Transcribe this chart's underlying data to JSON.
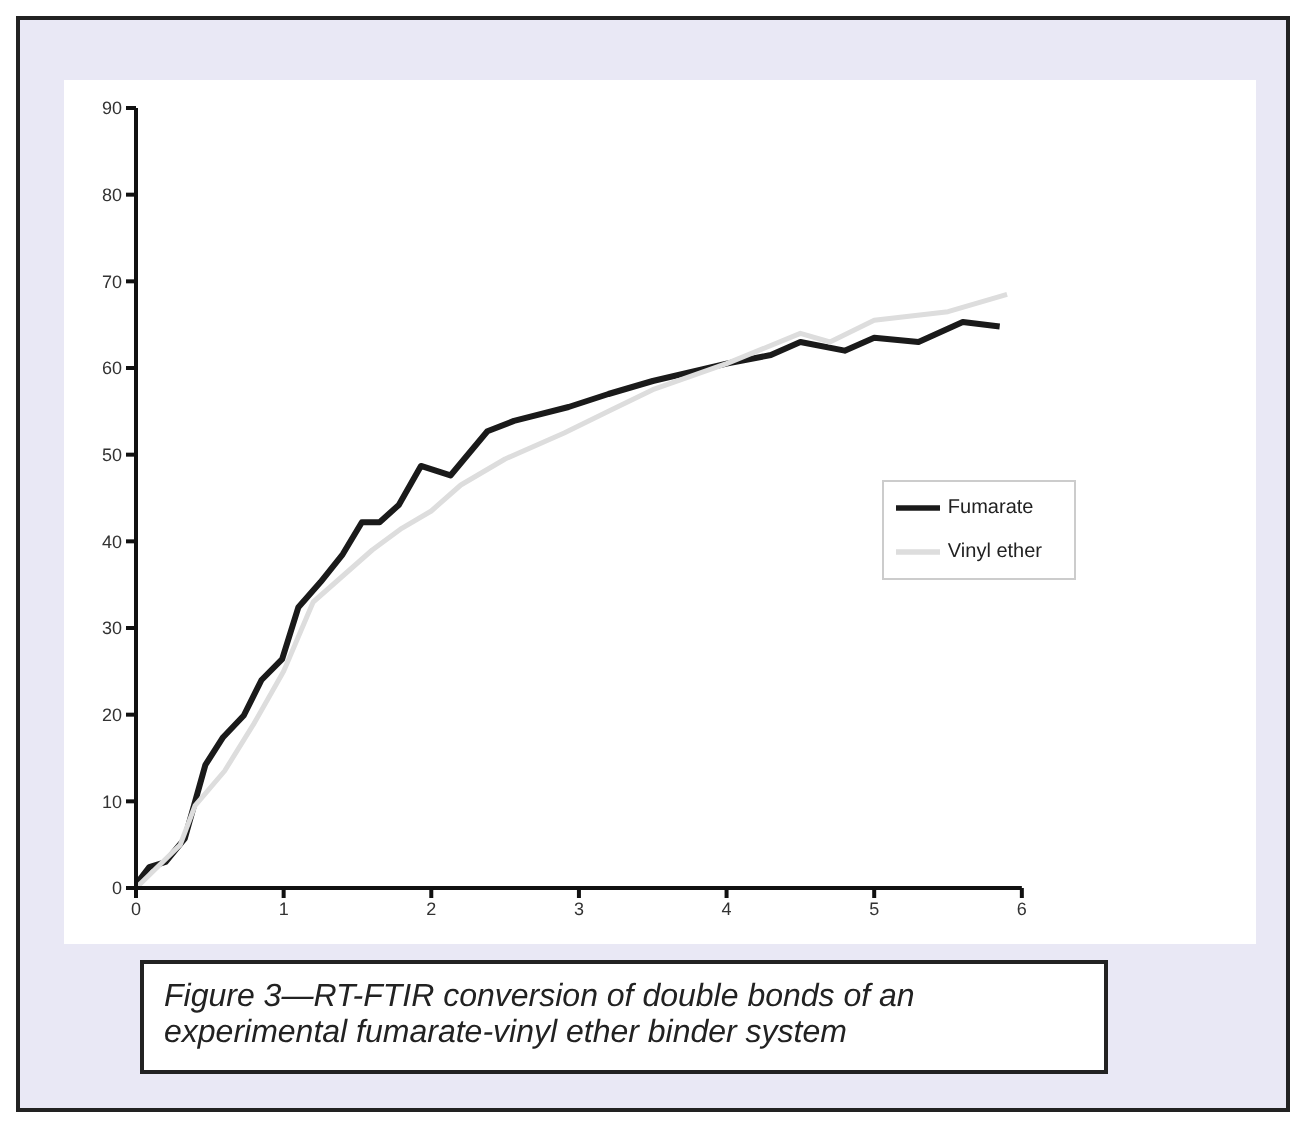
{
  "chart_data": {
    "type": "line",
    "xlim": [
      0,
      6
    ],
    "xticks": [
      0,
      1,
      2,
      3,
      4,
      5,
      6
    ],
    "ylim": [
      0,
      90
    ],
    "yticks": [
      0,
      10,
      20,
      30,
      40,
      50,
      60,
      70,
      80,
      90
    ],
    "grid": false,
    "legend": "right",
    "marker": "none",
    "line_style": "solid",
    "series": [
      {
        "name": "Fumarate",
        "color": "#1a1a1a",
        "x": [
          0,
          0.09,
          0.2,
          0.33,
          0.47,
          0.59,
          0.73,
          0.85,
          0.99,
          1.1,
          1.25,
          1.4,
          1.53,
          1.65,
          1.78,
          1.93,
          2.13,
          2.38,
          2.56,
          2.93,
          3.2,
          3.5,
          4.0,
          4.3,
          4.5,
          4.8,
          5.0,
          5.3,
          5.6,
          5.85
        ],
        "values": [
          0.4,
          2.4,
          3,
          5.7,
          14.2,
          17.4,
          19.9,
          24,
          26.4,
          32.4,
          35.3,
          38.5,
          42.2,
          42.2,
          44.2,
          48.7,
          47.6,
          52.7,
          53.9,
          55.5,
          57,
          58.5,
          60.5,
          61.5,
          63,
          62,
          63.5,
          63,
          65.3,
          64.8
        ]
      },
      {
        "name": "Vinyl ether",
        "color": "#dddddd",
        "x": [
          0,
          0.3,
          0.4,
          0.6,
          0.8,
          1.0,
          1.2,
          1.4,
          1.6,
          1.8,
          2.0,
          2.2,
          2.5,
          2.9,
          3.2,
          3.5,
          4.0,
          4.5,
          4.7,
          5.0,
          5.5,
          5.9
        ],
        "values": [
          0,
          5,
          9.5,
          13.5,
          19,
          25,
          33,
          36,
          39,
          41.5,
          43.5,
          46.5,
          49.5,
          52.5,
          55,
          57.5,
          60.5,
          64,
          63,
          65.5,
          66.5,
          68.5
        ]
      }
    ],
    "annotations": [
      "Figure 3—RT-FTIR conversion of double bonds of an experimental fumarate-vinyl ether binder system"
    ]
  }
}
